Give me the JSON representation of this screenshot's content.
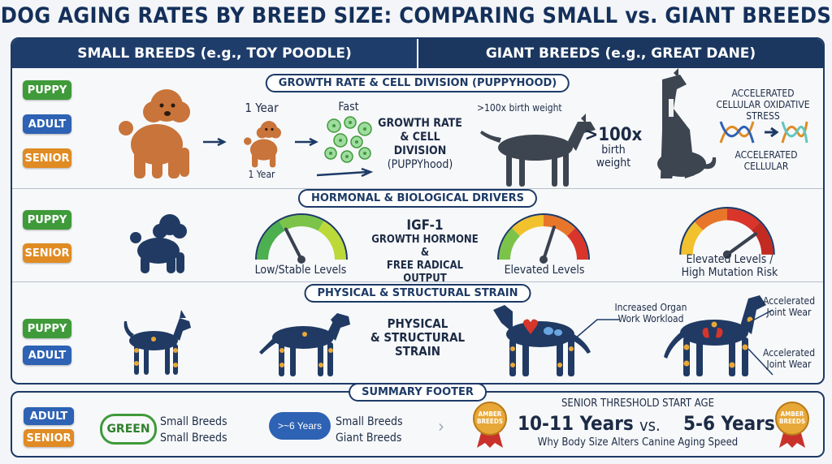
{
  "title": "DOG AGING RATES BY BREED SIZE: COMPARING SMALL vs. GIANT BREEDS",
  "columns": {
    "left": "SMALL BREEDS (e.g., TOY POODLE)",
    "right": "GIANT BREEDS (e.g., GREAT DANE)"
  },
  "sections": {
    "growth": {
      "label": "GROWTH RATE & CELL DIVISION (PUPPYHOOD)",
      "badges": [
        "PUPPY",
        "ADULT",
        "SENIOR"
      ],
      "one_year_top": "1 Year",
      "one_year_bottom": "1 Year",
      "fast": "Fast",
      "center_text": [
        "GROWTH RATE",
        "& CELL DIVISION",
        "(PUPPYhood)"
      ],
      "birth_weight_small": ">100x birth weight",
      "birth_weight_big": ">100x",
      "birth_weight_big2": "birth",
      "birth_weight_big3": "weight",
      "accel_top": [
        "ACCELERATED",
        "CELLULAR OXIDATIVE STRESS"
      ],
      "accel_bottom": [
        "ACCELERATED",
        "CELLULAR"
      ]
    },
    "hormonal": {
      "label": "HORMONAL & BIOLOGICAL DRIVERS",
      "badges": [
        "PUPPY",
        "SENIOR"
      ],
      "gauge1": "Low/Stable Levels",
      "center_text": [
        "IGF-1",
        "GROWTH HORMONE &",
        "FREE RADICAL OUTPUT"
      ],
      "gauge2": "Elevated Levels",
      "gauge3": [
        "Elevated Levels /",
        "High Mutation Risk"
      ],
      "gauge_levels": [
        0.35,
        0.6,
        0.8
      ]
    },
    "physical": {
      "label": "PHYSICAL & STRUCTURAL STRAIN",
      "badges": [
        "PUPPY",
        "ADULT"
      ],
      "center_text": [
        "PHYSICAL",
        "& STRUCTURAL",
        "STRAIN"
      ],
      "organ": [
        "Increased Organ",
        "Work Workload"
      ],
      "joint1": [
        "Accelerated",
        "Joint Wear"
      ],
      "joint2": [
        "Accelerated",
        "Joint Wear"
      ]
    }
  },
  "footer": {
    "label": "SUMMARY FOOTER",
    "badges": [
      "ADULT",
      "SENIOR"
    ],
    "green_pill": "GREEN",
    "col1": [
      "Small Breeds",
      "Small Breeds"
    ],
    "bubble": ">~6 Years",
    "col2": [
      "Small Breeds",
      "Giant Breeds"
    ],
    "threshold_title": "SENIOR THRESHOLD START AGE",
    "small_age": "10-11 Years",
    "vs": "vs.",
    "giant_age": "5-6 Years",
    "caption": "Why Body Size Alters Canine Aging Speed",
    "medal_text": [
      "AMBER",
      "BREEDS"
    ]
  },
  "colors": {
    "navy": "#1d3a66",
    "green": "#3f9a3a",
    "blue": "#2d62b4",
    "orange": "#e08b23",
    "poodle": "#c8743a",
    "dog_dark": "#3d4550",
    "silhouette": "#203a63",
    "gold": "#e8a838"
  }
}
